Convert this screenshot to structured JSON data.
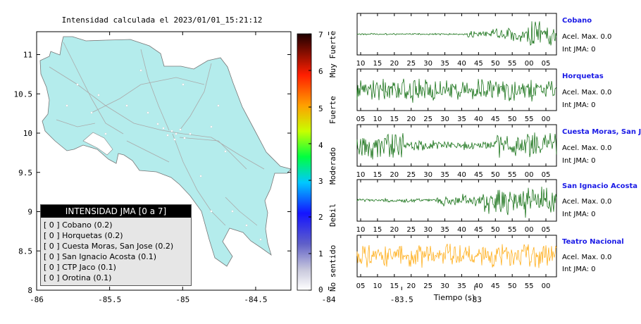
{
  "map": {
    "title": "Intensidad calculada el 2023/01/01_15:21:12",
    "x_ticks": [
      "-86",
      "-85.5",
      "-85",
      "-84.5",
      "-84",
      "-83.5",
      "-83"
    ],
    "y_ticks": [
      "11",
      "10.5",
      "10",
      "9.5",
      "9",
      "8.5",
      "8"
    ],
    "land_color": "#b4ecec"
  },
  "legend": {
    "title": "INTENSIDAD JMA [0 a 7]",
    "items": [
      "[ 0 ]  Cobano (0.2)",
      "[ 0 ]  Horquetas (0.2)",
      "[ 0 ]  Cuesta Moras, San Jose (0.2)",
      "[ 0 ]  San Ignacio Acosta (0.1)",
      "[ 0 ]  CTP Jaco (0.1)",
      "[ 0 ]  Orotina (0.1)"
    ]
  },
  "colorbar": {
    "ticks": [
      "7",
      "6",
      "5",
      "4",
      "3",
      "2",
      "1",
      "0"
    ],
    "labels": [
      "Muy Fuerte",
      "Fuerte",
      "Moderado",
      "Debil",
      "No sentido"
    ]
  },
  "stations": [
    {
      "name": "Cobano",
      "acel": "Acel. Max. 0.0",
      "int": "Int JMA: 0",
      "color": "#006400",
      "ticks": [
        "10",
        "15",
        "20",
        "25",
        "30",
        "35",
        "40",
        "45",
        "50",
        "55",
        "00",
        "05"
      ]
    },
    {
      "name": "Horquetas",
      "acel": "Acel. Max. 0.0",
      "int": "Int JMA: 0",
      "color": "#006400",
      "ticks": [
        "05",
        "10",
        "15",
        "20",
        "25",
        "30",
        "35",
        "40",
        "45",
        "50",
        "55",
        "00"
      ]
    },
    {
      "name": "Cuesta Moras, San Jose",
      "acel": "Acel. Max. 0.0",
      "int": "Int JMA: 0",
      "color": "#006400",
      "ticks": [
        "10",
        "15",
        "20",
        "25",
        "30",
        "35",
        "40",
        "45",
        "50",
        "55",
        "00",
        "05"
      ]
    },
    {
      "name": "San Ignacio Acosta",
      "acel": "Acel. Max. 0.0",
      "int": "Int JMA: 0",
      "color": "#006400",
      "ticks": [
        "10",
        "15",
        "20",
        "25",
        "30",
        "35",
        "40",
        "45",
        "50",
        "55",
        "00",
        "05"
      ]
    },
    {
      "name": "Teatro Nacional",
      "acel": "Acel. Max. 0.0",
      "int": "Int JMA: 0",
      "color": "#ffa500",
      "ticks": [
        "05",
        "10",
        "15",
        "20",
        "25",
        "30",
        "35",
        "40",
        "45",
        "50",
        "55",
        "00"
      ]
    }
  ],
  "time_axis_label": "Tiempo (s)"
}
